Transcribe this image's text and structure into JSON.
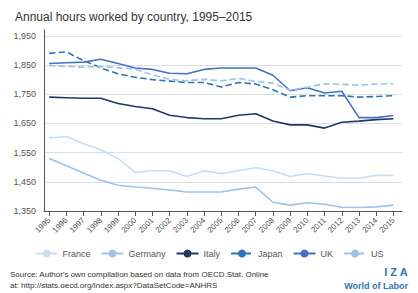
{
  "chart_data": {
    "type": "line",
    "title": "Annual hours worked by country, 1995–2015",
    "x": [
      1995,
      1996,
      1997,
      1998,
      1999,
      2000,
      2001,
      2002,
      2003,
      2004,
      2005,
      2006,
      2007,
      2008,
      2009,
      2010,
      2011,
      2012,
      2013,
      2014,
      2015
    ],
    "series": [
      {
        "name": "France",
        "color": "#c9dff0",
        "line_style": "solid",
        "values": [
          1600,
          1605,
          1580,
          1560,
          1530,
          1482,
          1488,
          1488,
          1468,
          1488,
          1478,
          1488,
          1498,
          1488,
          1468,
          1478,
          1470,
          1462,
          1462,
          1472,
          1472
        ]
      },
      {
        "name": "Germany",
        "color": "#9dc3e6",
        "line_style": "solid",
        "values": [
          1530,
          1505,
          1480,
          1455,
          1438,
          1432,
          1428,
          1422,
          1415,
          1415,
          1415,
          1425,
          1432,
          1380,
          1370,
          1378,
          1373,
          1363,
          1362,
          1364,
          1370
        ]
      },
      {
        "name": "Italy",
        "color": "#1f3864",
        "line_style": "solid",
        "values": [
          1740,
          1738,
          1736,
          1736,
          1718,
          1708,
          1700,
          1678,
          1670,
          1666,
          1666,
          1678,
          1683,
          1658,
          1645,
          1645,
          1634,
          1654,
          1658,
          1663,
          1666
        ]
      },
      {
        "name": "Japan",
        "color": "#2e75b6",
        "line_style": "dashed",
        "values": [
          1890,
          1895,
          1865,
          1840,
          1820,
          1808,
          1800,
          1795,
          1790,
          1790,
          1775,
          1790,
          1785,
          1765,
          1740,
          1745,
          1745,
          1745,
          1740,
          1742,
          1745
        ]
      },
      {
        "name": "UK",
        "color": "#4472c4",
        "line_style": "solid",
        "values": [
          1855,
          1858,
          1860,
          1870,
          1855,
          1840,
          1835,
          1822,
          1820,
          1835,
          1840,
          1840,
          1840,
          1815,
          1762,
          1772,
          1754,
          1760,
          1670,
          1670,
          1677
        ]
      },
      {
        "name": "US",
        "color": "#9dc3e6",
        "line_style": "dashed",
        "values": [
          1848,
          1845,
          1843,
          1845,
          1841,
          1836,
          1816,
          1801,
          1796,
          1801,
          1796,
          1804,
          1794,
          1788,
          1764,
          1774,
          1786,
          1784,
          1781,
          1785,
          1786
        ]
      }
    ],
    "xlim": [
      1994.7,
      2015.5
    ],
    "xticks": [
      1995,
      1996,
      1997,
      1998,
      1999,
      2000,
      2001,
      2002,
      2003,
      2004,
      2005,
      2006,
      2007,
      2008,
      2009,
      2010,
      2011,
      2012,
      2013,
      2014,
      2015
    ],
    "ylim": [
      1350,
      1970
    ],
    "yticks": [
      {
        "value": 1350,
        "label": "1,350"
      },
      {
        "value": 1450,
        "label": "1,450"
      },
      {
        "value": 1550,
        "label": "1,550"
      },
      {
        "value": 1650,
        "label": "1,650"
      },
      {
        "value": 1750,
        "label": "1,750"
      },
      {
        "value": 1850,
        "label": "1,850"
      },
      {
        "value": 1950,
        "label": "1,950"
      }
    ],
    "grid": true,
    "legend": "bottom",
    "annotations": [
      "Source: Author's own compilation based on data from OECD.Stat. Online",
      "at: http://stats.oecd.org/Index.aspx?DataSetCode=ANHRS",
      "I Z A",
      "World of Labor"
    ]
  }
}
